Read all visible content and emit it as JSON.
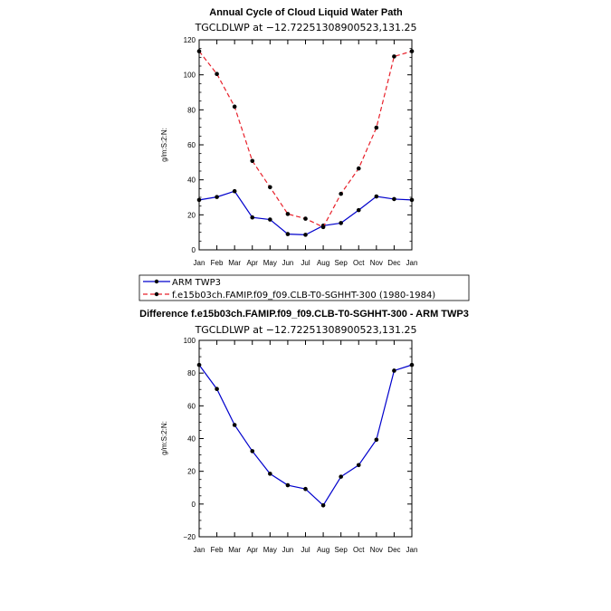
{
  "chart_data": [
    {
      "type": "line",
      "title": "Annual Cycle of Cloud Liquid Water Path",
      "subtitle": "TGCLDLWP  at  −12.72251308900523,131.25",
      "ylabel": "g/m:S:2:N:",
      "xlabel": "",
      "categories": [
        "Jan",
        "Feb",
        "Mar",
        "Apr",
        "May",
        "Jun",
        "Jul",
        "Aug",
        "Sep",
        "Oct",
        "Nov",
        "Dec",
        "Jan"
      ],
      "yticks": [
        0,
        20,
        40,
        60,
        80,
        100,
        120
      ],
      "ylim": [
        0,
        120
      ],
      "series": [
        {
          "name": "ARM TWP3",
          "color": "#0000cc",
          "dash": "solid",
          "values": [
            28.5,
            30.2,
            33.5,
            18.5,
            17.3,
            9.0,
            8.6,
            13.8,
            15.3,
            22.7,
            30.5,
            29.0,
            28.5
          ]
        },
        {
          "name": "f.e15b03ch.FAMIP.f09_f09.CLB-T0-SGHHT-300 (1980-1984)",
          "color": "#e8202a",
          "dash": "dashed",
          "values": [
            113.5,
            100.5,
            81.8,
            50.8,
            35.8,
            20.5,
            17.8,
            13.0,
            32.0,
            46.5,
            69.8,
            110.5,
            113.5
          ]
        }
      ],
      "legend": "bottom-left"
    },
    {
      "type": "line",
      "title": "Difference f.e15b03ch.FAMIP.f09_f09.CLB-T0-SGHHT-300 - ARM TWP3",
      "subtitle": "TGCLDLWP  at  −12.72251308900523,131.25",
      "ylabel": "g/m:S:2:N:",
      "xlabel": "",
      "categories": [
        "Jan",
        "Feb",
        "Mar",
        "Apr",
        "May",
        "Jun",
        "Jul",
        "Aug",
        "Sep",
        "Oct",
        "Nov",
        "Dec",
        "Jan"
      ],
      "yticks": [
        -20,
        0,
        20,
        40,
        60,
        80,
        100
      ],
      "ylim": [
        -20,
        100
      ],
      "series": [
        {
          "name": "difference",
          "color": "#0000cc",
          "dash": "solid",
          "values": [
            85.0,
            70.3,
            48.3,
            32.3,
            18.5,
            11.5,
            9.2,
            -0.8,
            16.7,
            23.8,
            39.3,
            81.5,
            85.0
          ]
        }
      ]
    }
  ]
}
